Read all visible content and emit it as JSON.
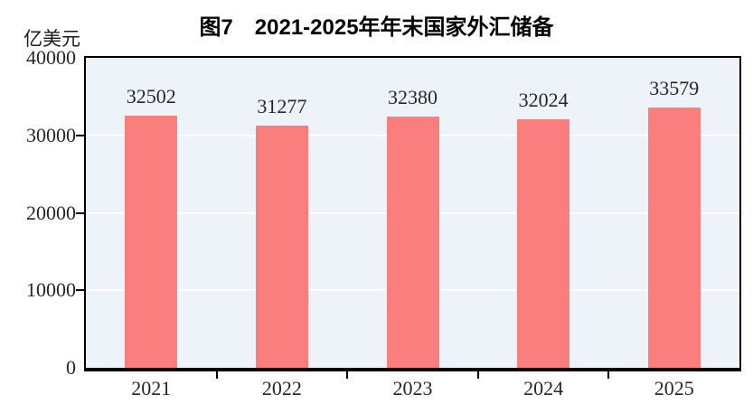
{
  "title": "图7　2021-2025年年末国家外汇储备",
  "y_axis_unit": "亿美元",
  "chart_data": {
    "type": "bar",
    "title": "图7　2021-2025年年末国家外汇储备",
    "categories": [
      "2021",
      "2022",
      "2023",
      "2024",
      "2025"
    ],
    "values": [
      32502,
      31277,
      32380,
      32024,
      33579
    ],
    "value_labels": [
      "32502",
      "31277",
      "32380",
      "32024",
      "33579"
    ],
    "xlabel": "",
    "ylabel": "亿美元",
    "ylim": [
      0,
      40000
    ],
    "yticks": [
      0,
      10000,
      20000,
      30000,
      40000
    ],
    "ytick_labels": [
      "0",
      "10000",
      "20000",
      "30000",
      "40000"
    ],
    "grid": true,
    "legend_position": "none",
    "colors": {
      "bar": "#FB7E7E",
      "plot_background": "#EDF3F8",
      "gridline": "#FFFFFF",
      "axis": "#000000",
      "text": "#262626",
      "title_text": "#000000"
    }
  }
}
